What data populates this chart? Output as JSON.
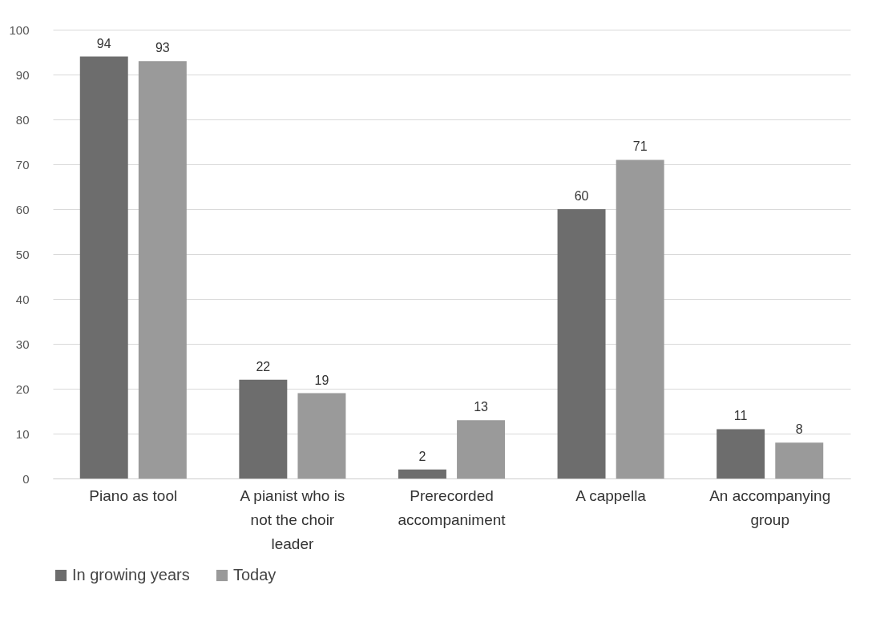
{
  "chart_data": {
    "type": "bar",
    "categories": [
      "Piano as tool",
      "A pianist who is not the choir leader",
      "Prerecorded accompaniment",
      "A cappella",
      "An accompanying group"
    ],
    "series": [
      {
        "name": "In growing years",
        "color": "#6d6d6d",
        "values": [
          94,
          22,
          2,
          60,
          11
        ]
      },
      {
        "name": "Today",
        "color": "#9a9a9a",
        "values": [
          93,
          19,
          13,
          71,
          8
        ]
      }
    ],
    "ylim": [
      0,
      100
    ],
    "yticks": [
      0,
      10,
      20,
      30,
      40,
      50,
      60,
      70,
      80,
      90,
      100
    ],
    "grid": "y",
    "legend": "bottom",
    "data_labels": true
  }
}
